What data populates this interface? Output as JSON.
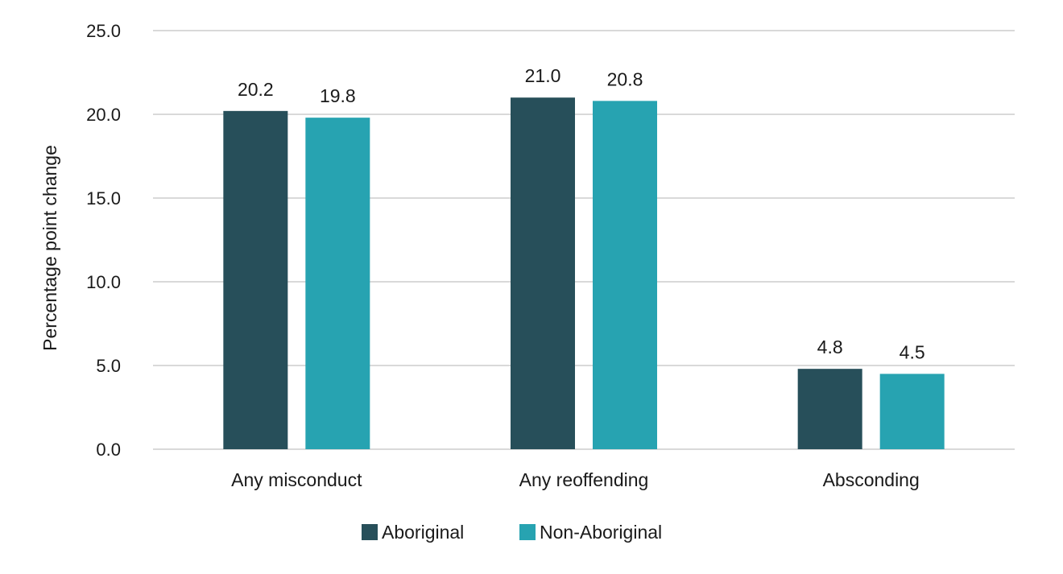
{
  "chart_data": {
    "type": "bar",
    "title": "",
    "xlabel": "",
    "ylabel": "Percentage point change",
    "ylim": [
      0,
      25
    ],
    "yticks": [
      "0.0",
      "5.0",
      "10.0",
      "15.0",
      "20.0",
      "25.0"
    ],
    "categories": [
      "Any misconduct",
      "Any reoffending",
      "Absconding"
    ],
    "series": [
      {
        "name": "Aboriginal",
        "color": "#274f5a",
        "values": [
          20.2,
          21.0,
          4.8
        ],
        "labels": [
          "20.2",
          "21.0",
          "4.8"
        ]
      },
      {
        "name": "Non-Aboriginal",
        "color": "#27a3b1",
        "values": [
          19.8,
          20.8,
          4.5
        ],
        "labels": [
          "19.8",
          "20.8",
          "4.5"
        ]
      }
    ],
    "grid": true,
    "legend_position": "bottom"
  }
}
